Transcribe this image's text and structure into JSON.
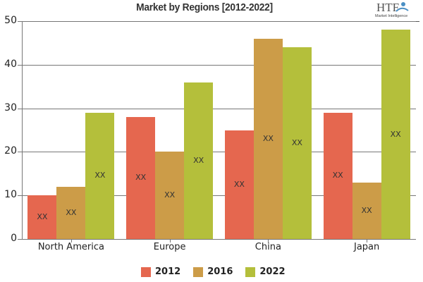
{
  "chart_data": {
    "type": "bar",
    "title": "Market by Regions [2012-2022]",
    "categories": [
      "North America",
      "Europe",
      "China",
      "Japan"
    ],
    "series": [
      {
        "name": "2012",
        "color": "#e5674f",
        "values": [
          10,
          28,
          25,
          29
        ],
        "labels": [
          "XX",
          "XX",
          "XX",
          "XX"
        ]
      },
      {
        "name": "2016",
        "color": "#cc9c48",
        "values": [
          12,
          20,
          46,
          13
        ],
        "labels": [
          "XX",
          "XX",
          "XX",
          "XX"
        ]
      },
      {
        "name": "2022",
        "color": "#b4bf3b",
        "values": [
          29,
          36,
          44,
          48
        ],
        "labels": [
          "XX",
          "XX",
          "XX",
          "XX"
        ]
      }
    ],
    "xlabel": "",
    "ylabel": "",
    "ylim": [
      0,
      50
    ],
    "yticks": [
      0,
      10,
      20,
      30,
      40,
      50
    ],
    "grid": true,
    "legend_position": "bottom"
  },
  "logo": {
    "brand": "HTF",
    "tagline": "Market Intelligence"
  }
}
